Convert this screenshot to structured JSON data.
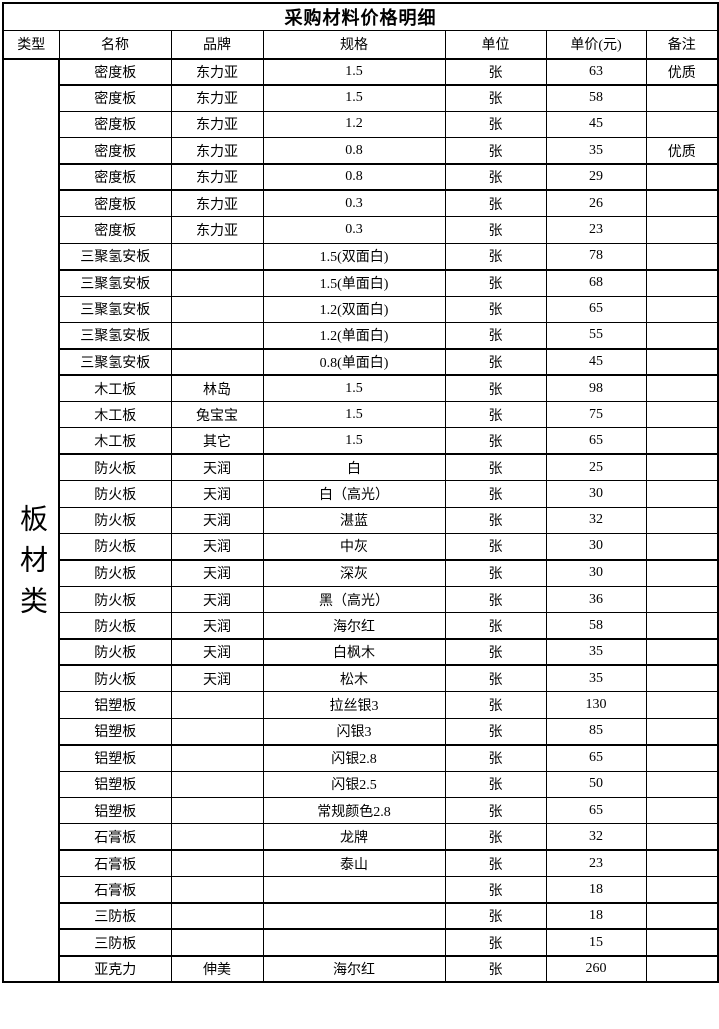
{
  "title": "采购材料价格明细",
  "category": {
    "label": "板材类"
  },
  "table": {
    "columns": [
      "类型",
      "名称",
      "品牌",
      "规格",
      "单位",
      "单价(元)",
      "备注"
    ],
    "rows": [
      {
        "name": "密度板",
        "brand": "东力亚",
        "spec": "1.5",
        "unit": "张",
        "price": "63",
        "note": "优质"
      },
      {
        "name": "密度板",
        "brand": "东力亚",
        "spec": "1.5",
        "unit": "张",
        "price": "58",
        "note": ""
      },
      {
        "name": "密度板",
        "brand": "东力亚",
        "spec": "1.2",
        "unit": "张",
        "price": "45",
        "note": ""
      },
      {
        "name": "密度板",
        "brand": "东力亚",
        "spec": "0.8",
        "unit": "张",
        "price": "35",
        "note": "优质"
      },
      {
        "name": "密度板",
        "brand": "东力亚",
        "spec": "0.8",
        "unit": "张",
        "price": "29",
        "note": ""
      },
      {
        "name": "密度板",
        "brand": "东力亚",
        "spec": "0.3",
        "unit": "张",
        "price": "26",
        "note": ""
      },
      {
        "name": "密度板",
        "brand": "东力亚",
        "spec": "0.3",
        "unit": "张",
        "price": "23",
        "note": ""
      },
      {
        "name": "三聚氢安板",
        "brand": "",
        "spec": "1.5(双面白)",
        "unit": "张",
        "price": "78",
        "note": ""
      },
      {
        "name": "三聚氢安板",
        "brand": "",
        "spec": "1.5(单面白)",
        "unit": "张",
        "price": "68",
        "note": ""
      },
      {
        "name": "三聚氢安板",
        "brand": "",
        "spec": "1.2(双面白)",
        "unit": "张",
        "price": "65",
        "note": ""
      },
      {
        "name": "三聚氢安板",
        "brand": "",
        "spec": "1.2(单面白)",
        "unit": "张",
        "price": "55",
        "note": ""
      },
      {
        "name": "三聚氢安板",
        "brand": "",
        "spec": "0.8(单面白)",
        "unit": "张",
        "price": "45",
        "note": ""
      },
      {
        "name": "木工板",
        "brand": "林岛",
        "spec": "1.5",
        "unit": "张",
        "price": "98",
        "note": ""
      },
      {
        "name": "木工板",
        "brand": "兔宝宝",
        "spec": "1.5",
        "unit": "张",
        "price": "75",
        "note": ""
      },
      {
        "name": "木工板",
        "brand": "其它",
        "spec": "1.5",
        "unit": "张",
        "price": "65",
        "note": ""
      },
      {
        "name": "防火板",
        "brand": "天润",
        "spec": "白",
        "unit": "张",
        "price": "25",
        "note": ""
      },
      {
        "name": "防火板",
        "brand": "天润",
        "spec": "白（高光）",
        "unit": "张",
        "price": "30",
        "note": ""
      },
      {
        "name": "防火板",
        "brand": "天润",
        "spec": "湛蓝",
        "unit": "张",
        "price": "32",
        "note": ""
      },
      {
        "name": "防火板",
        "brand": "天润",
        "spec": "中灰",
        "unit": "张",
        "price": "30",
        "note": ""
      },
      {
        "name": "防火板",
        "brand": "天润",
        "spec": "深灰",
        "unit": "张",
        "price": "30",
        "note": ""
      },
      {
        "name": "防火板",
        "brand": "天润",
        "spec": "黑（高光）",
        "unit": "张",
        "price": "36",
        "note": ""
      },
      {
        "name": "防火板",
        "brand": "天润",
        "spec": "海尔红",
        "unit": "张",
        "price": "58",
        "note": ""
      },
      {
        "name": "防火板",
        "brand": "天润",
        "spec": "白枫木",
        "unit": "张",
        "price": "35",
        "note": ""
      },
      {
        "name": "防火板",
        "brand": "天润",
        "spec": "松木",
        "unit": "张",
        "price": "35",
        "note": ""
      },
      {
        "name": "铝塑板",
        "brand": "",
        "spec": "拉丝银3",
        "unit": "张",
        "price": "130",
        "note": ""
      },
      {
        "name": "铝塑板",
        "brand": "",
        "spec": "闪银3",
        "unit": "张",
        "price": "85",
        "note": ""
      },
      {
        "name": "铝塑板",
        "brand": "",
        "spec": "闪银2.8",
        "unit": "张",
        "price": "65",
        "note": ""
      },
      {
        "name": "铝塑板",
        "brand": "",
        "spec": "闪银2.5",
        "unit": "张",
        "price": "50",
        "note": ""
      },
      {
        "name": "铝塑板",
        "brand": "",
        "spec": "常规颜色2.8",
        "unit": "张",
        "price": "65",
        "note": ""
      },
      {
        "name": "石膏板",
        "brand": "",
        "spec": "龙牌",
        "unit": "张",
        "price": "32",
        "note": ""
      },
      {
        "name": "石膏板",
        "brand": "",
        "spec": "泰山",
        "unit": "张",
        "price": "23",
        "note": ""
      },
      {
        "name": "石膏板",
        "brand": "",
        "spec": "",
        "unit": "张",
        "price": "18",
        "note": ""
      },
      {
        "name": "三防板",
        "brand": "",
        "spec": "",
        "unit": "张",
        "price": "18",
        "note": ""
      },
      {
        "name": "三防板",
        "brand": "",
        "spec": "",
        "unit": "张",
        "price": "15",
        "note": ""
      },
      {
        "name": "亚克力",
        "brand": "伸美",
        "spec": "海尔红",
        "unit": "张",
        "price": "260",
        "note": ""
      }
    ]
  }
}
